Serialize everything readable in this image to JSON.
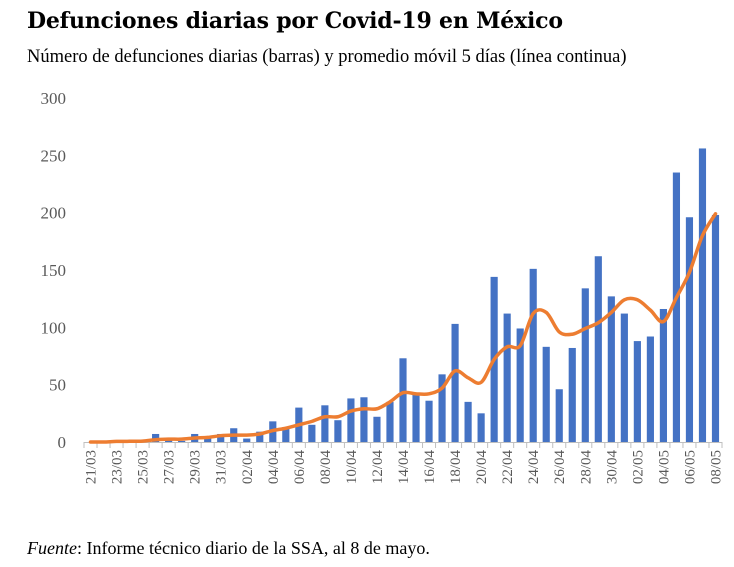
{
  "chart_data": {
    "type": "bar",
    "title": "Defunciones diarias por Covid-19 en México",
    "subtitle": "Número de defunciones diarias (barras) y promedio móvil 5 días (línea continua)",
    "xlabel": "",
    "ylabel": "",
    "ylim": [
      0,
      300
    ],
    "yticks": [
      0,
      50,
      100,
      150,
      200,
      250,
      300
    ],
    "grid": false,
    "legend": "none",
    "x_tick_labels": [
      "21/03",
      "23/03",
      "25/03",
      "27/03",
      "29/03",
      "31/03",
      "02/04",
      "04/04",
      "06/04",
      "08/04",
      "10/04",
      "12/04",
      "14/04",
      "16/04",
      "18/04",
      "20/04",
      "22/04",
      "24/04",
      "26/04",
      "28/04",
      "30/04",
      "02/05",
      "04/05",
      "06/05",
      "08/05"
    ],
    "categories": [
      "21/03",
      "22/03",
      "23/03",
      "24/03",
      "25/03",
      "26/03",
      "27/03",
      "28/03",
      "29/03",
      "30/03",
      "31/03",
      "01/04",
      "02/04",
      "03/04",
      "04/04",
      "05/04",
      "06/04",
      "07/04",
      "08/04",
      "09/04",
      "10/04",
      "11/04",
      "12/04",
      "13/04",
      "14/04",
      "15/04",
      "16/04",
      "17/04",
      "18/04",
      "19/04",
      "20/04",
      "21/04",
      "22/04",
      "23/04",
      "24/04",
      "25/04",
      "26/04",
      "27/04",
      "28/04",
      "29/04",
      "30/04",
      "01/05",
      "02/05",
      "03/05",
      "04/05",
      "05/05",
      "06/05",
      "07/05",
      "08/05"
    ],
    "series": [
      {
        "type": "bar",
        "color": "#4472C4",
        "values": [
          0,
          0,
          1,
          1,
          1,
          7,
          2,
          1,
          7,
          4,
          7,
          12,
          3,
          9,
          18,
          13,
          30,
          15,
          32,
          19,
          38,
          39,
          22,
          35,
          73,
          42,
          36,
          59,
          103,
          35,
          25,
          144,
          112,
          99,
          151,
          83,
          46,
          82,
          134,
          162,
          127,
          112,
          88,
          92,
          116,
          235,
          196,
          256,
          198
        ]
      },
      {
        "type": "line",
        "color": "#ED7D31",
        "values": [
          0,
          0,
          0.5,
          0.6,
          0.8,
          2,
          2.5,
          2.5,
          3.5,
          4,
          5.5,
          6,
          6,
          7,
          10,
          12,
          15,
          18,
          22,
          22,
          27,
          29,
          29,
          35,
          43,
          42,
          42,
          47,
          62,
          56,
          52,
          72,
          83,
          84,
          112,
          113,
          96,
          94,
          99,
          104,
          113,
          124,
          124,
          115,
          105,
          126,
          148,
          180,
          199
        ]
      }
    ]
  },
  "footer": {
    "source_label": "Fuente",
    "source_text": ": Informe técnico diario de la SSA, al 8 de mayo."
  }
}
